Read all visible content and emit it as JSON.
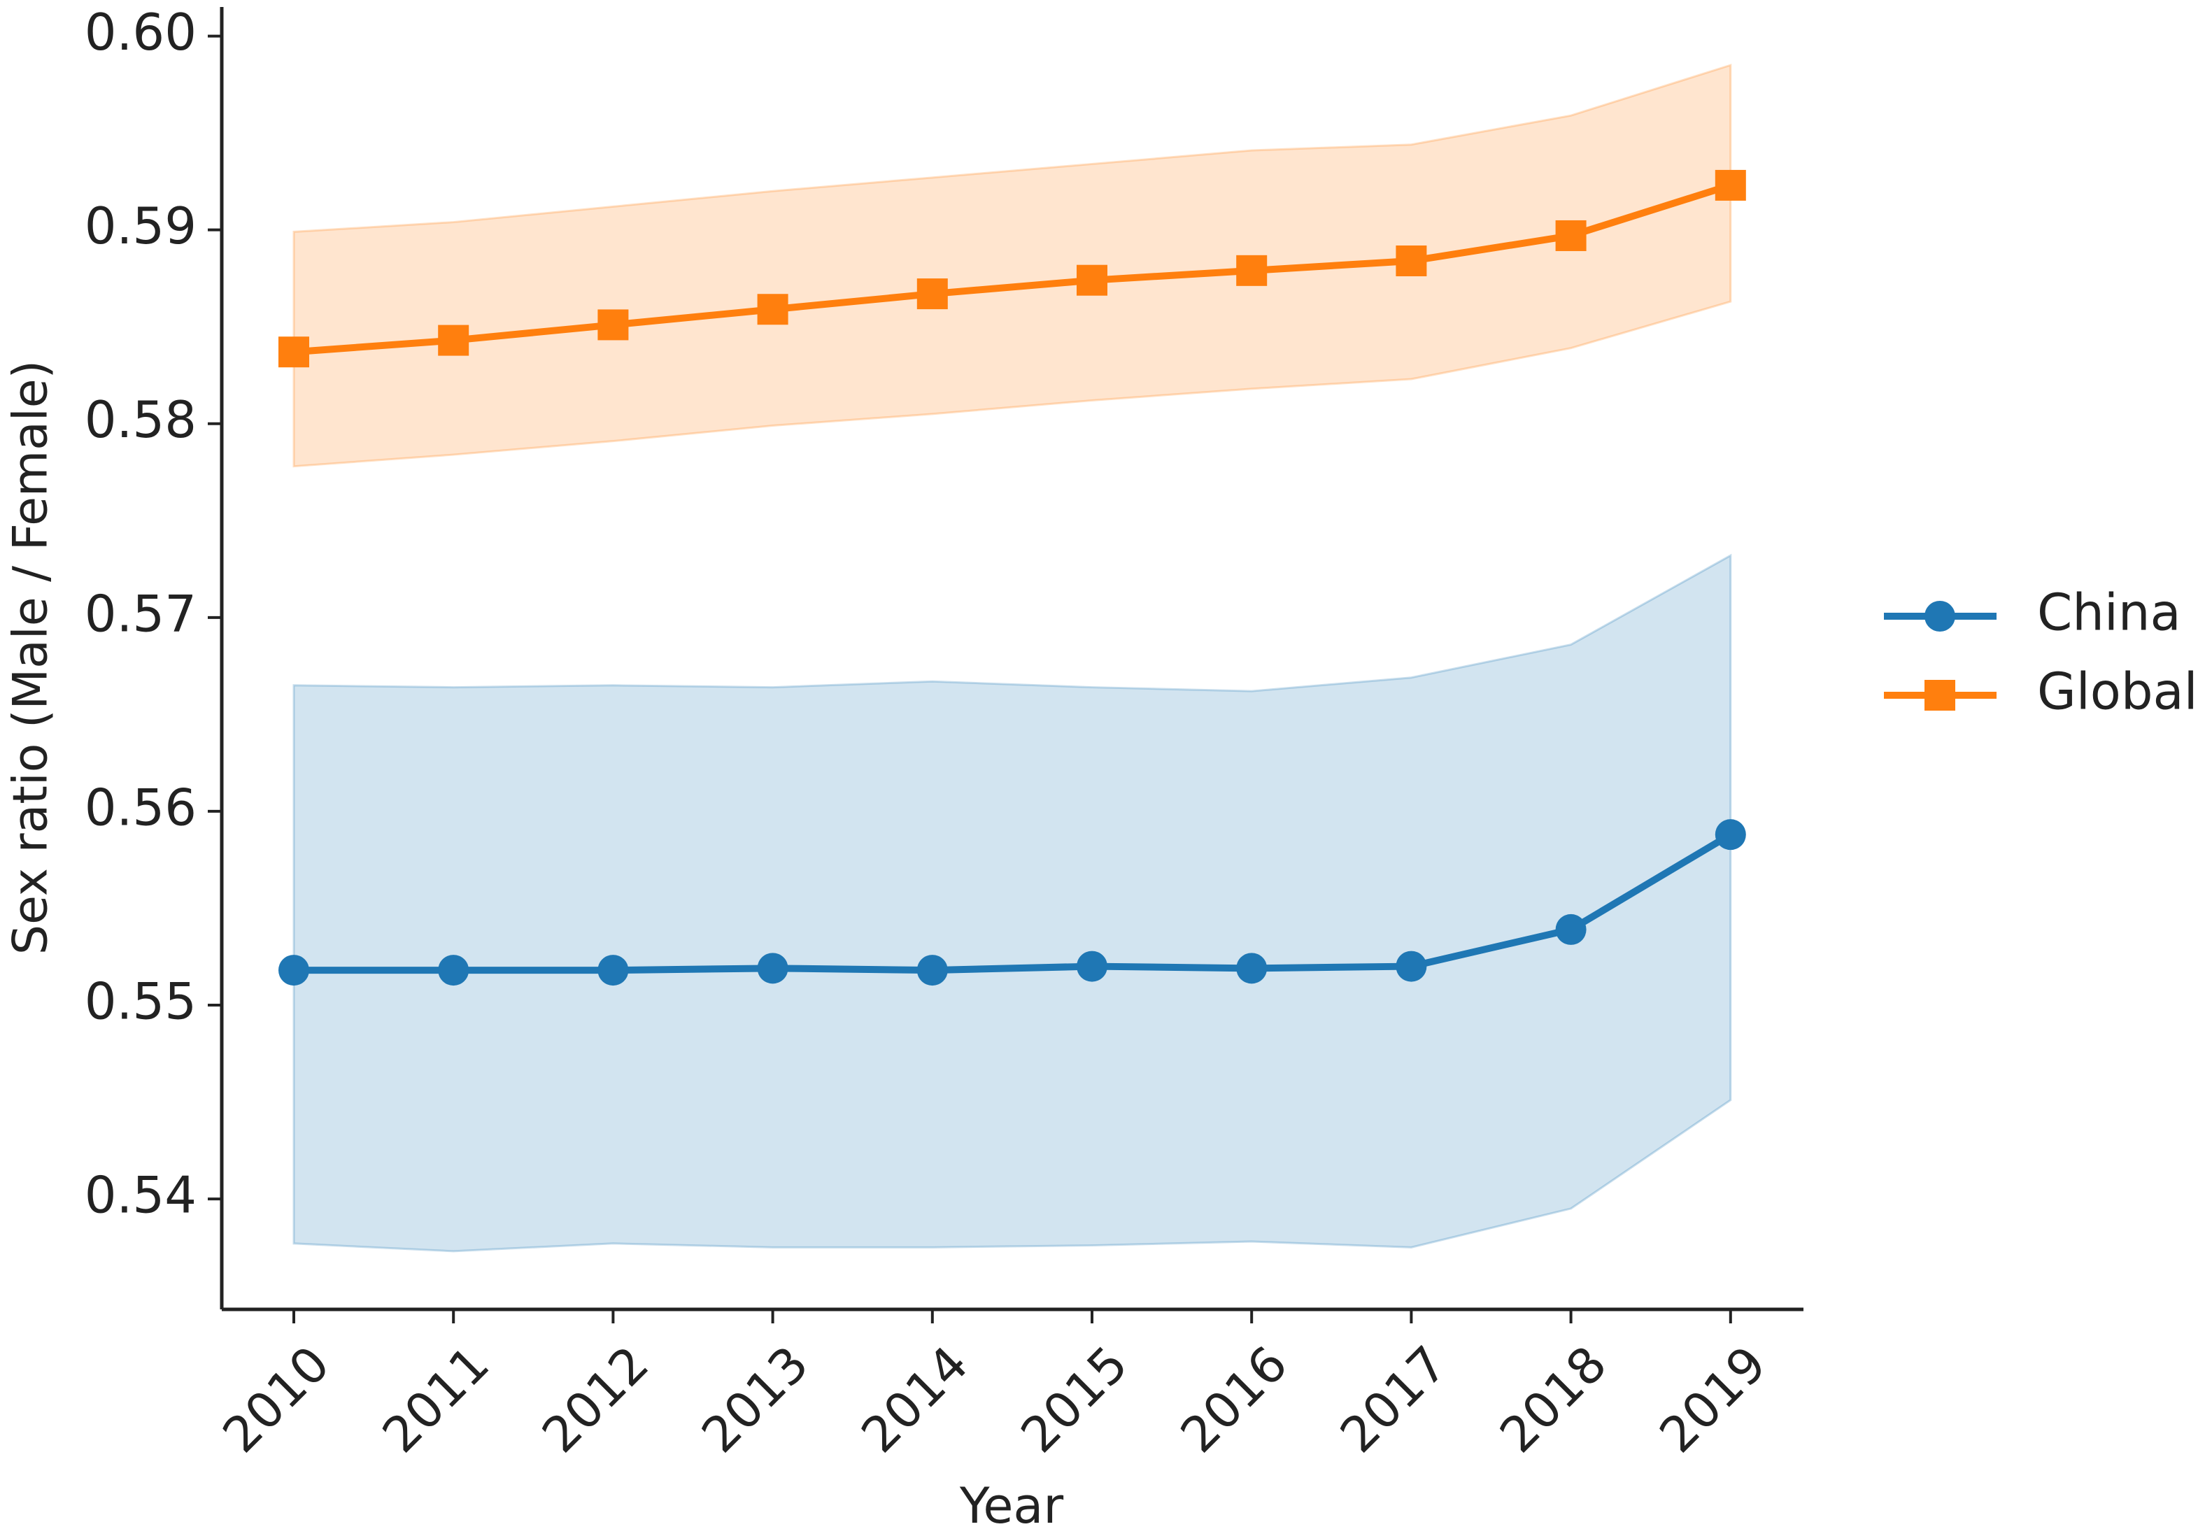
{
  "chart_data": {
    "type": "line",
    "x_label": "Year",
    "y_label": "Sex ratio (Male / Female)",
    "categories": [
      "2010",
      "2011",
      "2012",
      "2013",
      "2014",
      "2015",
      "2016",
      "2017",
      "2018",
      "2019"
    ],
    "series": [
      {
        "name": "China",
        "color": "#1f77b4",
        "marker": "circle",
        "values": [
          0.5518,
          0.5518,
          0.5518,
          0.5519,
          0.5518,
          0.552,
          0.5519,
          0.552,
          0.5539,
          0.5588
        ],
        "upper": [
          0.5665,
          0.5664,
          0.5665,
          0.5664,
          0.5667,
          0.5664,
          0.5662,
          0.5669,
          0.5686,
          0.5732
        ],
        "lower": [
          0.5377,
          0.5373,
          0.5377,
          0.5375,
          0.5375,
          0.5376,
          0.5378,
          0.5375,
          0.5395,
          0.5451
        ]
      },
      {
        "name": "Global",
        "color": "#ff7f0e",
        "marker": "square",
        "values": [
          0.5837,
          0.5843,
          0.5851,
          0.5859,
          0.5867,
          0.5874,
          0.5879,
          0.5884,
          0.5897,
          0.5923
        ],
        "upper": [
          0.5899,
          0.5904,
          0.5912,
          0.592,
          0.5927,
          0.5934,
          0.5941,
          0.5944,
          0.5959,
          0.5985
        ],
        "lower": [
          0.5778,
          0.5784,
          0.5791,
          0.5799,
          0.5805,
          0.5812,
          0.5818,
          0.5823,
          0.5839,
          0.5863
        ]
      }
    ],
    "ylim": [
      0.5343,
      0.6015
    ],
    "yticks": [
      0.54,
      0.55,
      0.56,
      0.57,
      0.58,
      0.59,
      {
        "value": 0.6,
        "label": "0.60"
      }
    ],
    "legend": "right"
  }
}
